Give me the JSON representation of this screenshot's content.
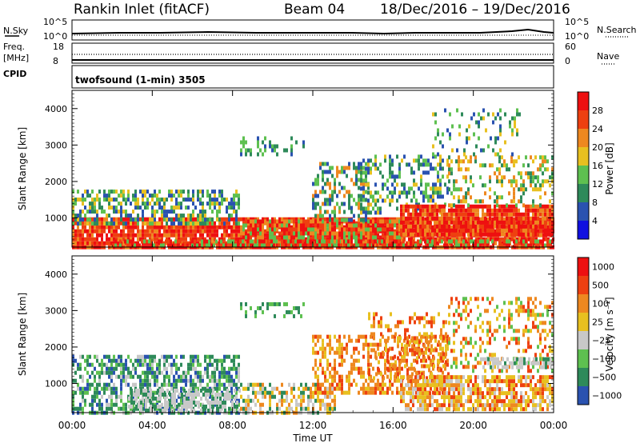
{
  "header": {
    "station": "Rankin Inlet (fitACF)",
    "beam": "Beam 04",
    "dates": "18/Dec/2016 – 19/Dec/2016"
  },
  "nsky_panel": {
    "left_label": "N.Sky",
    "left_ticks": [
      "10^5",
      "10^0"
    ],
    "right_label": "N.Search",
    "right_ticks": [
      "10^5",
      "10^0"
    ]
  },
  "freq_panel": {
    "left_label_1": "Freq.",
    "left_label_2": "[MHz]",
    "left_ticks": [
      "18",
      "8"
    ],
    "right_label": "Nave",
    "right_ticks": [
      "60",
      "0"
    ]
  },
  "cpid_panel": {
    "label": "CPID",
    "text": "twofsound (1-min) 3505"
  },
  "chart_data": [
    {
      "type": "heatmap",
      "title": "",
      "xlabel": "",
      "ylabel": "Slant Range [km]",
      "x_ticks": [
        "00:00",
        "04:00",
        "08:00",
        "12:00",
        "16:00",
        "20:00",
        "00:00"
      ],
      "y_ticks": [
        "1000",
        "2000",
        "3000",
        "4000"
      ],
      "ylim": [
        200,
        4500
      ],
      "colorbar_label": "Power [dB]",
      "colorbar_ticks": [
        "4",
        "8",
        "12",
        "16",
        "20",
        "24",
        "28"
      ],
      "colorbar_colors": [
        "#1010e0",
        "#2a52b0",
        "#2e8a5a",
        "#5ec050",
        "#e8c020",
        "#ee8820",
        "#ee4010",
        "#ee1010"
      ]
    },
    {
      "type": "heatmap",
      "title": "",
      "xlabel": "Time UT",
      "ylabel": "Slant Range [km]",
      "x_ticks": [
        "00:00",
        "04:00",
        "08:00",
        "12:00",
        "16:00",
        "20:00",
        "00:00"
      ],
      "y_ticks": [
        "1000",
        "2000",
        "3000",
        "4000"
      ],
      "ylim": [
        200,
        4500
      ],
      "colorbar_label": "Velocity [m s⁻¹]",
      "colorbar_ticks": [
        "1000",
        "500",
        "100",
        "25",
        "−25",
        "−100",
        "−500",
        "−1000"
      ],
      "colorbar_colors": [
        "#2a52b0",
        "#2e8a5a",
        "#5ec050",
        "#c8c8c8",
        "#e8c020",
        "#ee8820",
        "#ee4010",
        "#ee1010"
      ]
    }
  ]
}
